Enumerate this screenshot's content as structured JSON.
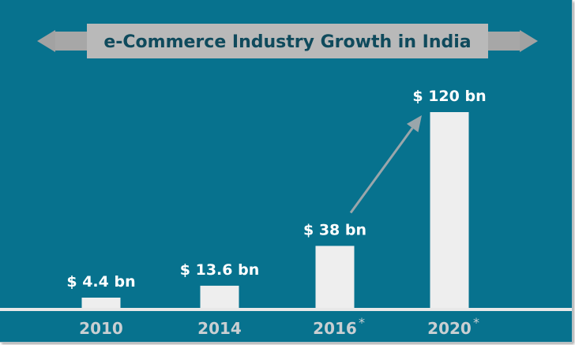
{
  "colors": {
    "background": "#07728e",
    "bar": "#eeeeee",
    "banner": "#b9b9b9",
    "title": "#0f4a5c",
    "axis_label": "#c9cfd2",
    "value_label": "#ffffff",
    "arrow": "#9aa6ab"
  },
  "chart_data": {
    "type": "bar",
    "title": "e-Commerce Industry Growth in India",
    "xlabel": "",
    "ylabel": "",
    "categories": [
      "2010",
      "2014",
      "2016",
      "2020"
    ],
    "category_notes": [
      "",
      "",
      "*",
      "*"
    ],
    "values": [
      4.4,
      13.6,
      38,
      120
    ],
    "value_labels": [
      "$ 4.4 bn",
      "$ 13.6 bn",
      "$ 38 bn",
      "$ 120 bn"
    ],
    "unit": "bn",
    "grid": false,
    "legend": "none",
    "annotations": [
      {
        "type": "arrow",
        "from": "2016",
        "to": "2020"
      }
    ]
  }
}
